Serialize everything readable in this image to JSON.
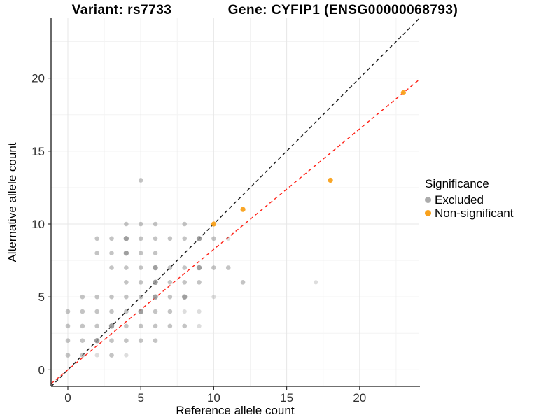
{
  "chart_data": {
    "type": "scatter",
    "title_left": "Variant: rs7733",
    "title_right": "Gene: CYFIP1 (ENSG00000068793)",
    "xlabel": "Reference allele count",
    "ylabel": "Alternative allele count",
    "x_ticks": [
      0,
      5,
      10,
      15,
      20
    ],
    "y_ticks": [
      0,
      5,
      10,
      15,
      20
    ],
    "xlim": [
      -1.15,
      24.15
    ],
    "ylim": [
      -1.15,
      24.15
    ],
    "grid": "major+minor",
    "legend": {
      "title": "Significance",
      "position": "right",
      "items": [
        {
          "label": "Excluded",
          "color": "#ABABAB"
        },
        {
          "label": "Non-significant",
          "color": "#F9A11B"
        }
      ]
    },
    "lines": [
      {
        "name": "identity-line",
        "color": "#1A1A1A",
        "dashed": true,
        "slope": 1,
        "intercept": 0
      },
      {
        "name": "fitted-line",
        "color": "#FF2015",
        "dashed": true,
        "slope": 0.826,
        "intercept": 0
      }
    ],
    "series": [
      {
        "name": "Excluded",
        "color": "#8E8E8E",
        "points": [
          [
            5,
            13,
            2
          ],
          [
            4,
            10,
            2
          ],
          [
            5,
            10,
            2
          ],
          [
            6,
            10,
            2
          ],
          [
            8,
            10,
            2
          ],
          [
            2,
            9,
            2
          ],
          [
            3,
            9,
            2
          ],
          [
            4,
            9,
            3
          ],
          [
            5,
            9,
            2
          ],
          [
            6,
            9,
            2
          ],
          [
            7,
            9,
            2
          ],
          [
            8,
            9,
            2
          ],
          [
            9,
            9,
            3
          ],
          [
            10,
            9,
            2
          ],
          [
            11,
            9,
            1
          ],
          [
            2,
            8,
            2
          ],
          [
            3,
            8,
            2
          ],
          [
            4,
            8,
            3
          ],
          [
            5,
            8,
            2
          ],
          [
            6,
            8,
            2
          ],
          [
            3,
            7,
            2
          ],
          [
            4,
            7,
            2
          ],
          [
            5,
            7,
            2
          ],
          [
            6,
            7,
            3
          ],
          [
            7,
            7,
            2
          ],
          [
            8,
            7,
            2
          ],
          [
            9,
            7,
            3
          ],
          [
            10,
            7,
            2
          ],
          [
            11,
            7,
            2
          ],
          [
            4,
            6,
            2
          ],
          [
            5,
            6,
            2
          ],
          [
            6,
            6,
            3
          ],
          [
            7,
            6,
            2
          ],
          [
            8,
            6,
            2
          ],
          [
            9,
            6,
            2
          ],
          [
            12,
            6,
            2
          ],
          [
            17,
            6,
            1
          ],
          [
            1,
            5,
            2
          ],
          [
            2,
            5,
            2
          ],
          [
            3,
            5,
            2
          ],
          [
            4,
            5,
            2
          ],
          [
            5,
            5,
            2
          ],
          [
            6,
            5,
            3
          ],
          [
            7,
            5,
            2
          ],
          [
            8,
            5,
            3
          ],
          [
            10,
            5,
            1
          ],
          [
            0,
            4,
            2
          ],
          [
            1,
            4,
            2
          ],
          [
            2,
            4,
            2
          ],
          [
            3,
            4,
            2
          ],
          [
            4,
            4,
            2
          ],
          [
            5,
            4,
            3
          ],
          [
            6,
            4,
            2
          ],
          [
            7,
            4,
            2
          ],
          [
            8,
            4,
            1
          ],
          [
            9,
            4,
            1
          ],
          [
            0,
            3,
            2
          ],
          [
            1,
            3,
            2
          ],
          [
            2,
            3,
            2
          ],
          [
            3,
            3,
            3
          ],
          [
            4,
            3,
            2
          ],
          [
            5,
            3,
            2
          ],
          [
            6,
            3,
            2
          ],
          [
            7,
            3,
            2
          ],
          [
            8,
            3,
            2
          ],
          [
            9,
            3,
            1
          ],
          [
            0,
            2,
            2
          ],
          [
            1,
            2,
            2
          ],
          [
            2,
            2,
            3
          ],
          [
            3,
            2,
            2
          ],
          [
            4,
            2,
            2
          ],
          [
            5,
            2,
            2
          ],
          [
            6,
            2,
            2
          ],
          [
            0,
            1,
            2
          ],
          [
            1,
            1,
            2
          ],
          [
            2,
            1,
            1
          ],
          [
            3,
            1,
            2
          ],
          [
            4,
            1,
            1
          ]
        ]
      },
      {
        "name": "Non-significant",
        "color": "#F9A11B",
        "points": [
          [
            10,
            10,
            3
          ],
          [
            12,
            11,
            3
          ],
          [
            18,
            13,
            3
          ],
          [
            23,
            19,
            3
          ]
        ]
      }
    ]
  }
}
